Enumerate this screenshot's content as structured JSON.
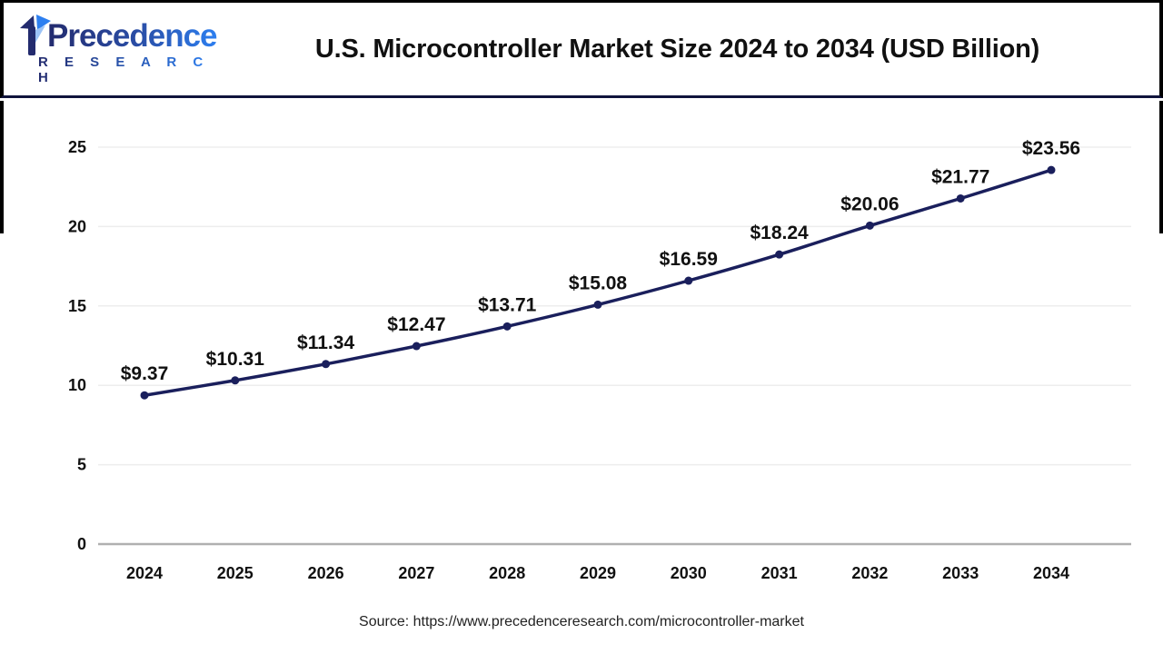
{
  "header": {
    "logo": {
      "name": "Precedence",
      "subname": "R E S E A R C H"
    },
    "title": "U.S. Microcontroller Market Size 2024 to 2034 (USD Billion)"
  },
  "chart_data": {
    "type": "line",
    "title": "U.S. Microcontroller Market Size 2024 to 2034 (USD Billion)",
    "categories": [
      "2024",
      "2025",
      "2026",
      "2027",
      "2028",
      "2029",
      "2030",
      "2031",
      "2032",
      "2033",
      "2034"
    ],
    "values": [
      9.37,
      10.31,
      11.34,
      12.47,
      13.71,
      15.08,
      16.59,
      18.24,
      20.06,
      21.77,
      23.56
    ],
    "data_labels": [
      "$9.37",
      "$10.31",
      "$11.34",
      "$12.47",
      "$13.71",
      "$15.08",
      "$16.59",
      "$18.24",
      "$20.06",
      "$21.77",
      "$23.56"
    ],
    "ylim": [
      0,
      25
    ],
    "yticks": [
      0,
      5,
      10,
      15,
      20,
      25
    ],
    "grid": true,
    "legend": "none",
    "line_color": "#1a1f5c",
    "marker_color": "#1a1f5c",
    "grid_color": "#ededed",
    "axis_color": "#b0b0b0",
    "label_color": "#111111"
  },
  "footer": {
    "source": "Source: https://www.precedenceresearch.com/microcontroller-market"
  }
}
